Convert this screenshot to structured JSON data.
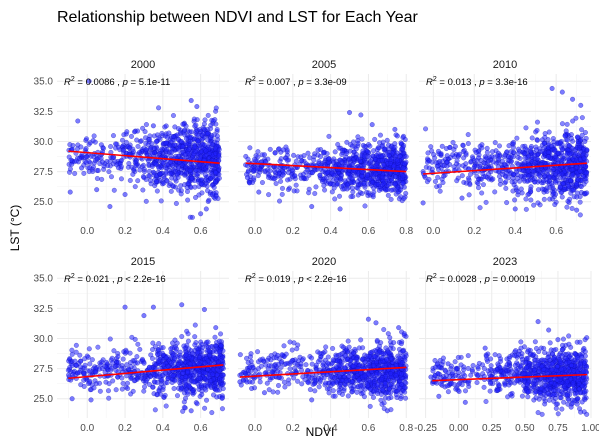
{
  "chart_data": {
    "type": "scatter",
    "title": "Relationship between NDVI and LST for Each Year",
    "xlabel": "NDVI",
    "ylabel": "LST (°C)",
    "y_ticks": [
      "25.0",
      "27.5",
      "30.0",
      "32.5",
      "35.0"
    ],
    "ylim": [
      23.4,
      35.6
    ],
    "grid": true,
    "colors": {
      "points": "#2323ff",
      "fit_line": "#ff0000",
      "strip_text": "#1a1a1a"
    },
    "panels": [
      {
        "year": "2000",
        "annotation": {
          "r2": "0.0086",
          "p": "= 5.1e-11"
        },
        "xlim": [
          -0.16,
          0.75
        ],
        "x_ticks": [
          "0.0",
          "0.2",
          "0.4",
          "0.6"
        ],
        "fit": {
          "x": [
            -0.1,
            0.7
          ],
          "y": [
            29.2,
            28.2
          ]
        },
        "cloud": {
          "x_range": [
            -0.1,
            0.7
          ],
          "x_center": 0.5,
          "y_center": 28.6,
          "y_spread": 1.6
        },
        "points": [
          [
            -0.09,
            25.8
          ],
          [
            -0.05,
            31.7
          ],
          [
            -0.03,
            27.8
          ],
          [
            0.01,
            35.0
          ],
          [
            0.05,
            26.0
          ],
          [
            0.08,
            28.3
          ],
          [
            0.12,
            24.6
          ],
          [
            0.15,
            29.8
          ],
          [
            0.2,
            25.6
          ],
          [
            0.25,
            30.8
          ],
          [
            0.3,
            27.0
          ],
          [
            0.35,
            31.3
          ],
          [
            0.55,
            33.4
          ],
          [
            0.58,
            32.9
          ],
          [
            0.6,
            24.0
          ],
          [
            0.63,
            24.4
          ],
          [
            0.68,
            27.4
          ]
        ]
      },
      {
        "year": "2005",
        "annotation": {
          "r2": "0.007",
          "p": "= 3.3e-09"
        },
        "xlim": [
          -0.09,
          0.82
        ],
        "x_ticks": [
          "0.0",
          "0.2",
          "0.4",
          "0.6",
          "0.8"
        ],
        "fit": {
          "x": [
            -0.05,
            0.8
          ],
          "y": [
            28.2,
            27.5
          ]
        },
        "cloud": {
          "x_range": [
            -0.05,
            0.8
          ],
          "x_center": 0.55,
          "y_center": 27.7,
          "y_spread": 1.3
        },
        "points": [
          [
            -0.04,
            27.0
          ],
          [
            0.02,
            25.8
          ],
          [
            0.05,
            28.9
          ],
          [
            0.1,
            26.9
          ],
          [
            0.15,
            29.3
          ],
          [
            0.3,
            24.6
          ],
          [
            0.5,
            32.4
          ],
          [
            0.56,
            32.2
          ],
          [
            0.62,
            31.4
          ],
          [
            0.74,
            31.0
          ],
          [
            0.78,
            29.4
          ],
          [
            0.79,
            26.2
          ],
          [
            0.45,
            24.4
          ]
        ]
      },
      {
        "year": "2010",
        "annotation": {
          "r2": "0.013",
          "p": "= 3.3e-16"
        },
        "xlim": [
          -0.07,
          0.77
        ],
        "x_ticks": [
          "0.0",
          "0.2",
          "0.4",
          "0.6"
        ],
        "fit": {
          "x": [
            -0.05,
            0.75
          ],
          "y": [
            27.3,
            28.2
          ]
        },
        "cloud": {
          "x_range": [
            -0.05,
            0.75
          ],
          "x_center": 0.55,
          "y_center": 28.0,
          "y_spread": 1.5
        },
        "points": [
          [
            -0.05,
            24.9
          ],
          [
            -0.02,
            28.4
          ],
          [
            0.03,
            26.3
          ],
          [
            0.08,
            29.5
          ],
          [
            0.14,
            25.3
          ],
          [
            0.2,
            27.6
          ],
          [
            0.4,
            24.4
          ],
          [
            0.58,
            34.4
          ],
          [
            0.63,
            34.1
          ],
          [
            0.68,
            33.5
          ],
          [
            0.72,
            33.0
          ],
          [
            0.74,
            30.0
          ],
          [
            0.7,
            24.3
          ]
        ]
      },
      {
        "year": "2015",
        "annotation": {
          "r2": "0.021",
          "p": "< 2.2e-16"
        },
        "xlim": [
          -0.16,
          0.75
        ],
        "x_ticks": [
          "0.0",
          "0.2",
          "0.4",
          "0.6"
        ],
        "fit": {
          "x": [
            -0.1,
            0.72
          ],
          "y": [
            26.7,
            27.8
          ]
        },
        "cloud": {
          "x_range": [
            -0.1,
            0.72
          ],
          "x_center": 0.55,
          "y_center": 27.4,
          "y_spread": 1.3
        },
        "points": [
          [
            -0.08,
            25.0
          ],
          [
            -0.04,
            27.2
          ],
          [
            0.02,
            24.9
          ],
          [
            0.08,
            27.5
          ],
          [
            0.2,
            32.6
          ],
          [
            0.3,
            31.9
          ],
          [
            0.35,
            32.6
          ],
          [
            0.5,
            32.8
          ],
          [
            0.62,
            32.4
          ],
          [
            0.68,
            30.9
          ],
          [
            0.55,
            24.0
          ],
          [
            0.7,
            28.9
          ]
        ]
      },
      {
        "year": "2020",
        "annotation": {
          "r2": "0.019",
          "p": "< 2.2e-16"
        },
        "xlim": [
          -0.09,
          0.82
        ],
        "x_ticks": [
          "0.0",
          "0.2",
          "0.4",
          "0.6",
          "0.8"
        ],
        "fit": {
          "x": [
            -0.08,
            0.8
          ],
          "y": [
            26.8,
            27.6
          ]
        },
        "cloud": {
          "x_range": [
            -0.08,
            0.8
          ],
          "x_center": 0.55,
          "y_center": 27.3,
          "y_spread": 1.2
        },
        "points": [
          [
            -0.08,
            26.4
          ],
          [
            -0.02,
            28.1
          ],
          [
            0.05,
            25.5
          ],
          [
            0.12,
            28.6
          ],
          [
            0.3,
            24.9
          ],
          [
            0.6,
            31.6
          ],
          [
            0.64,
            31.3
          ],
          [
            0.76,
            30.9
          ],
          [
            0.79,
            30.4
          ],
          [
            0.78,
            28.0
          ],
          [
            0.7,
            24.0
          ]
        ]
      },
      {
        "year": "2023",
        "annotation": {
          "r2": "0.0028",
          "p": "= 0.00019"
        },
        "xlim": [
          -0.3,
          1.0
        ],
        "x_ticks": [
          "-0.25",
          "0.00",
          "0.25",
          "0.50",
          "0.75",
          "1.00"
        ],
        "fit": {
          "x": [
            -0.2,
            0.97
          ],
          "y": [
            26.5,
            27.0
          ]
        },
        "cloud": {
          "x_range": [
            -0.2,
            0.97
          ],
          "x_center": 0.62,
          "y_center": 26.9,
          "y_spread": 1.2
        },
        "points": [
          [
            -0.21,
            26.8
          ],
          [
            -0.15,
            25.2
          ],
          [
            -0.08,
            27.9
          ],
          [
            0.05,
            24.7
          ],
          [
            0.2,
            29.2
          ],
          [
            0.6,
            31.4
          ],
          [
            0.68,
            30.7
          ],
          [
            0.75,
            29.9
          ],
          [
            0.9,
            28.4
          ],
          [
            0.95,
            25.6
          ],
          [
            0.85,
            24.3
          ]
        ]
      }
    ]
  }
}
